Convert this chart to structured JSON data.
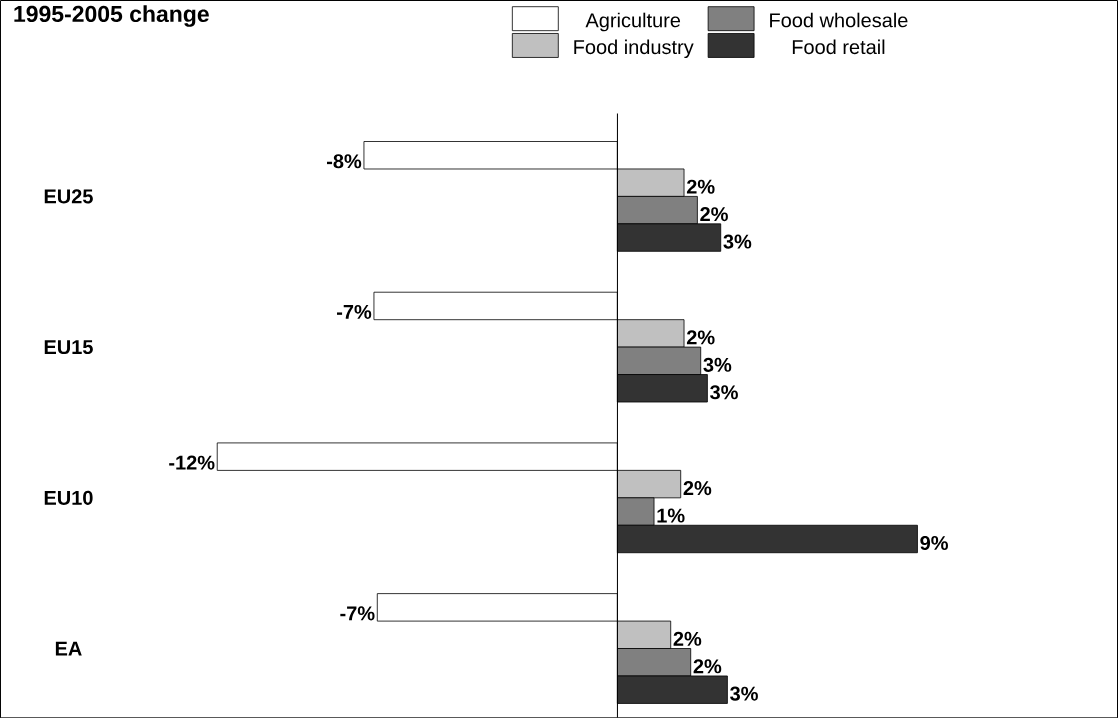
{
  "chart_data": {
    "type": "bar",
    "orientation": "horizontal",
    "title": "1995-2005 change",
    "categories": [
      "EU25",
      "EU15",
      "EU10",
      "EA"
    ],
    "xlim": [
      -18.5,
      15
    ],
    "tick_labels": "y",
    "legend": "top right",
    "series": [
      {
        "name": "Agriculture",
        "color": "#ffffff",
        "values": [
          -7.6,
          -7.3,
          -12.0,
          -7.2
        ],
        "value_labels": [
          "-8%",
          "-7%",
          "-12%",
          "-7%"
        ]
      },
      {
        "name": "Food industry",
        "color": "#c0c0c0",
        "values": [
          2.0,
          2.0,
          1.9,
          1.6
        ],
        "value_labels": [
          "2%",
          "2%",
          "2%",
          "2%"
        ]
      },
      {
        "name": "Food wholesale",
        "color": "#808080",
        "values": [
          2.4,
          2.5,
          1.1,
          2.2
        ],
        "value_labels": [
          "2%",
          "3%",
          "1%",
          "2%"
        ]
      },
      {
        "name": "Food retail",
        "color": "#333333",
        "values": [
          3.1,
          2.7,
          9.0,
          3.3
        ],
        "value_labels": [
          "3%",
          "3%",
          "9%",
          "3%"
        ]
      }
    ]
  }
}
